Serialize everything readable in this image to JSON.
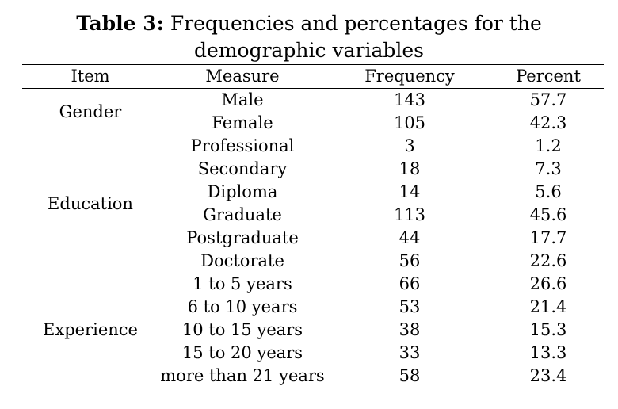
{
  "caption": {
    "label": "Table 3:",
    "text": "Frequencies and percentages for the",
    "text_line2": "demographic variables"
  },
  "table": {
    "headers": [
      "Item",
      "Measure",
      "Frequency",
      "Percent"
    ],
    "groups": [
      {
        "item": "Gender",
        "rows": [
          {
            "measure": "Male",
            "frequency": "143",
            "percent": "57.7"
          },
          {
            "measure": "Female",
            "frequency": "105",
            "percent": "42.3"
          }
        ]
      },
      {
        "item": "Education",
        "rows": [
          {
            "measure": "Professional",
            "frequency": "3",
            "percent": "1.2"
          },
          {
            "measure": "Secondary",
            "frequency": "18",
            "percent": "7.3"
          },
          {
            "measure": "Diploma",
            "frequency": "14",
            "percent": "5.6"
          },
          {
            "measure": "Graduate",
            "frequency": "113",
            "percent": "45.6"
          },
          {
            "measure": "Postgraduate",
            "frequency": "44",
            "percent": "17.7"
          },
          {
            "measure": "Doctorate",
            "frequency": "56",
            "percent": "22.6"
          }
        ]
      },
      {
        "item": "Experience",
        "rows": [
          {
            "measure": "1 to 5 years",
            "frequency": "66",
            "percent": "26.6"
          },
          {
            "measure": "6 to 10 years",
            "frequency": "53",
            "percent": "21.4"
          },
          {
            "measure": "10 to 15 years",
            "frequency": "38",
            "percent": "15.3"
          },
          {
            "measure": "15 to 20 years",
            "frequency": "33",
            "percent": "13.3"
          },
          {
            "measure": "more than 21 years",
            "frequency": "58",
            "percent": "23.4"
          }
        ]
      }
    ]
  }
}
